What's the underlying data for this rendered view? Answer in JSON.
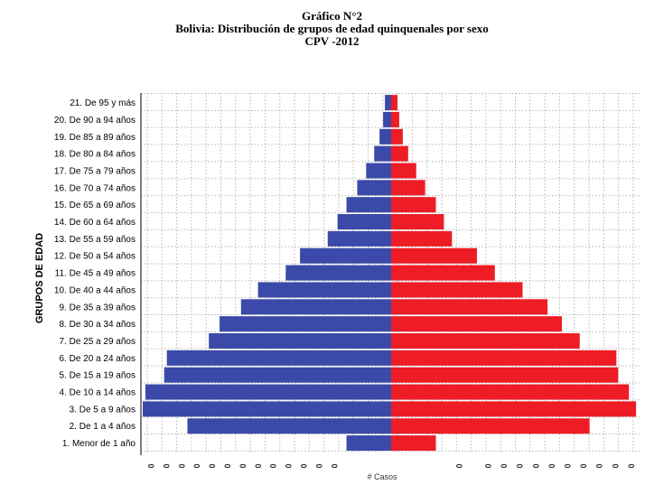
{
  "titles": {
    "line1": "Gráfico N°2",
    "line2": "Bolivia: Distribución de grupos de edad quinquenales por sexo",
    "line3": "CPV -2012"
  },
  "chart_data": {
    "type": "bar",
    "orientation": "horizontal-population-pyramid",
    "ylabel": "GRUPOS DE EDAD",
    "xlabel": "# Casos",
    "grid": true,
    "categories": [
      "1. Menor de 1 año",
      "2. De 1 a 4 años",
      "3. De 5 a 9 años",
      "4. De 10 a 14 años",
      "5. De 15 a 19 años",
      "6. De 20 a 24 años",
      "7. De 25 a 29 años",
      "8. De 30 a 34 años",
      "9. De 35 a 39 años",
      "10. De 40 a 44 años",
      "11. De 45 a 49 años",
      "12. De 50 a 54 años",
      "13. De 55 a 59 años",
      "14. De 60 a 64 años",
      "15. De 65 a 69 años",
      "16. De 70 a 74 años",
      "17. De 75 a 79 años",
      "18. De 80 a 84 años",
      "19. De 85 a 89 años",
      "20. De 90 a 94 años",
      "21. De 95 y más"
    ],
    "series": [
      {
        "color": "#3b4aa8",
        "side": "left",
        "values": [
          50,
          228,
          278,
          275,
          254,
          251,
          204,
          192,
          168,
          149,
          118,
          102,
          71,
          60,
          50,
          38,
          28,
          19,
          13,
          9,
          7
        ]
      },
      {
        "color": "#ee1c24",
        "side": "right",
        "values": [
          50,
          222,
          274,
          266,
          254,
          252,
          211,
          191,
          175,
          147,
          116,
          96,
          68,
          59,
          50,
          38,
          28,
          19,
          13,
          9,
          7
        ]
      }
    ],
    "xlim": [
      -280,
      280
    ],
    "tick_label_glyph": "0"
  },
  "colors": {
    "grid": "#b5b5b5",
    "axis": "#000000",
    "tick_text": "#333333"
  }
}
